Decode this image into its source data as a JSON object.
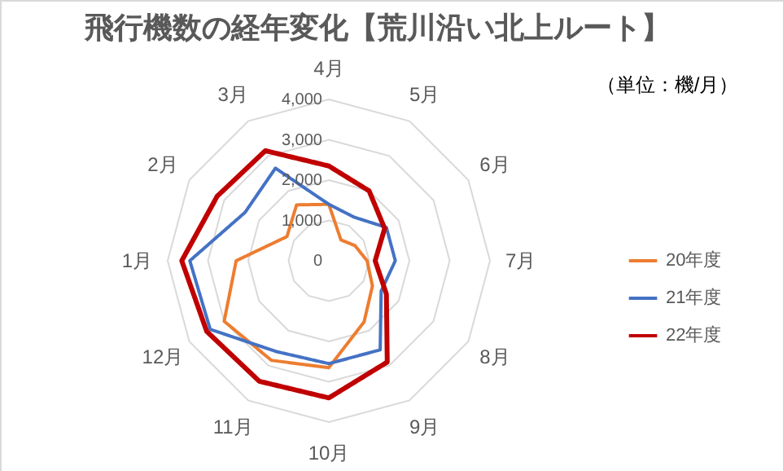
{
  "chart_data": {
    "type": "radar",
    "title": "飛行機数の経年変化【荒川沿い北上ルート】",
    "annotations": [
      "（単位：機/月）"
    ],
    "categories": [
      "4月",
      "5月",
      "6月",
      "7月",
      "8月",
      "9月",
      "10月",
      "11月",
      "12月",
      "1月",
      "2月",
      "3月"
    ],
    "series": [
      {
        "name": "20年度",
        "color": "#ed7d31",
        "values": [
          1400,
          600,
          750,
          950,
          1250,
          1750,
          2650,
          2850,
          3000,
          2300,
          1200,
          1600
        ]
      },
      {
        "name": "21年度",
        "color": "#4472c4",
        "values": [
          1400,
          1250,
          1650,
          1650,
          1500,
          2550,
          2550,
          2600,
          3400,
          3450,
          2400,
          2650
        ]
      },
      {
        "name": "22年度",
        "color": "#c00000",
        "values": [
          2350,
          2000,
          1600,
          1150,
          1650,
          2900,
          3400,
          3450,
          3500,
          3650,
          3200,
          3150
        ]
      }
    ],
    "ylim": [
      0,
      4000
    ],
    "yticks": [
      {
        "value": 0,
        "label": "0"
      },
      {
        "value": 1000,
        "label": "1,000"
      },
      {
        "value": 2000,
        "label": "2,000"
      },
      {
        "value": 3000,
        "label": "3,000"
      },
      {
        "value": 4000,
        "label": "4,000"
      }
    ],
    "grid": true,
    "legend": "right",
    "line_style": "solid"
  }
}
